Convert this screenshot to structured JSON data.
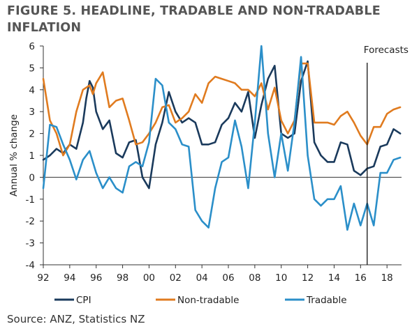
{
  "title": "FIGURE 5. HEADLINE, TRADABLE AND NON-TRADABLE INFLATION",
  "source": "Source: ANZ, Statistics NZ",
  "chart_data": {
    "type": "line",
    "ylabel": "Annual % change",
    "xlabel": "",
    "ylim": [
      -4,
      6
    ],
    "yticks": [
      -4,
      -3,
      -2,
      -1,
      0,
      1,
      2,
      3,
      4,
      5,
      6
    ],
    "xlim": [
      1992,
      2019.1
    ],
    "xticks": [
      1992,
      1994,
      1996,
      1998,
      2000,
      2002,
      2004,
      2006,
      2008,
      2010,
      2012,
      2014,
      2016,
      2018
    ],
    "xtick_labels": [
      "92",
      "94",
      "96",
      "98",
      "00",
      "02",
      "04",
      "06",
      "08",
      "10",
      "12",
      "14",
      "16",
      "18"
    ],
    "annotation": {
      "text": "Forecasts",
      "x": 2016.5
    },
    "legend_position": "bottom",
    "series": [
      {
        "name": "CPI",
        "color": "#1a3a5c",
        "points": [
          [
            1992.0,
            0.8
          ],
          [
            1992.5,
            1.0
          ],
          [
            1993.0,
            1.3
          ],
          [
            1993.5,
            1.1
          ],
          [
            1994.0,
            1.5
          ],
          [
            1994.5,
            1.3
          ],
          [
            1995.0,
            2.5
          ],
          [
            1995.25,
            3.6
          ],
          [
            1995.5,
            4.4
          ],
          [
            1995.75,
            4.1
          ],
          [
            1996.0,
            3.0
          ],
          [
            1996.5,
            2.2
          ],
          [
            1997.0,
            2.6
          ],
          [
            1997.5,
            1.1
          ],
          [
            1998.0,
            0.9
          ],
          [
            1998.5,
            1.6
          ],
          [
            1999.0,
            1.7
          ],
          [
            1999.5,
            0.0
          ],
          [
            2000.0,
            -0.5
          ],
          [
            2000.5,
            1.5
          ],
          [
            2001.0,
            2.5
          ],
          [
            2001.5,
            3.9
          ],
          [
            2002.0,
            3.0
          ],
          [
            2002.5,
            2.5
          ],
          [
            2003.0,
            2.7
          ],
          [
            2003.5,
            2.5
          ],
          [
            2004.0,
            1.5
          ],
          [
            2004.5,
            1.5
          ],
          [
            2005.0,
            1.6
          ],
          [
            2005.5,
            2.4
          ],
          [
            2006.0,
            2.7
          ],
          [
            2006.5,
            3.4
          ],
          [
            2007.0,
            3.0
          ],
          [
            2007.5,
            3.9
          ],
          [
            2008.0,
            1.8
          ],
          [
            2008.5,
            3.3
          ],
          [
            2009.0,
            4.5
          ],
          [
            2009.5,
            5.1
          ],
          [
            2010.0,
            2.0
          ],
          [
            2010.5,
            1.8
          ],
          [
            2011.0,
            2.0
          ],
          [
            2011.5,
            4.4
          ],
          [
            2012.0,
            5.3
          ],
          [
            2012.5,
            1.6
          ],
          [
            2013.0,
            1.0
          ],
          [
            2013.5,
            0.7
          ],
          [
            2014.0,
            0.7
          ],
          [
            2014.5,
            1.6
          ],
          [
            2015.0,
            1.5
          ],
          [
            2015.5,
            0.3
          ],
          [
            2016.0,
            0.1
          ],
          [
            2016.5,
            0.4
          ],
          [
            2017.0,
            0.5
          ],
          [
            2017.5,
            1.4
          ],
          [
            2018.0,
            1.5
          ],
          [
            2018.5,
            2.2
          ],
          [
            2019.0,
            2.0
          ]
        ]
      },
      {
        "name": "Non-tradable",
        "color": "#e07b1f",
        "points": [
          [
            1992.0,
            4.5
          ],
          [
            1992.5,
            2.6
          ],
          [
            1993.0,
            2.0
          ],
          [
            1993.5,
            1.0
          ],
          [
            1994.0,
            1.5
          ],
          [
            1994.5,
            3.0
          ],
          [
            1995.0,
            4.0
          ],
          [
            1995.5,
            4.2
          ],
          [
            1995.75,
            3.8
          ],
          [
            1996.0,
            4.3
          ],
          [
            1996.5,
            4.8
          ],
          [
            1997.0,
            3.2
          ],
          [
            1997.5,
            3.5
          ],
          [
            1998.0,
            3.6
          ],
          [
            1998.5,
            2.6
          ],
          [
            1999.0,
            1.5
          ],
          [
            1999.5,
            1.6
          ],
          [
            2000.0,
            2.0
          ],
          [
            2000.5,
            2.5
          ],
          [
            2001.0,
            3.2
          ],
          [
            2001.5,
            3.3
          ],
          [
            2002.0,
            2.5
          ],
          [
            2002.5,
            2.7
          ],
          [
            2003.0,
            3.0
          ],
          [
            2003.5,
            3.8
          ],
          [
            2004.0,
            3.4
          ],
          [
            2004.5,
            4.3
          ],
          [
            2005.0,
            4.6
          ],
          [
            2005.5,
            4.5
          ],
          [
            2006.0,
            4.4
          ],
          [
            2006.5,
            4.3
          ],
          [
            2007.0,
            4.0
          ],
          [
            2007.5,
            4.0
          ],
          [
            2008.0,
            3.7
          ],
          [
            2008.5,
            4.3
          ],
          [
            2009.0,
            3.1
          ],
          [
            2009.5,
            4.1
          ],
          [
            2010.0,
            2.6
          ],
          [
            2010.5,
            2.0
          ],
          [
            2011.0,
            2.6
          ],
          [
            2011.5,
            5.2
          ],
          [
            2012.0,
            5.2
          ],
          [
            2012.5,
            2.5
          ],
          [
            2013.0,
            2.5
          ],
          [
            2013.5,
            2.5
          ],
          [
            2014.0,
            2.4
          ],
          [
            2014.5,
            2.8
          ],
          [
            2015.0,
            3.0
          ],
          [
            2015.5,
            2.5
          ],
          [
            2016.0,
            1.9
          ],
          [
            2016.5,
            1.5
          ],
          [
            2017.0,
            2.3
          ],
          [
            2017.5,
            2.3
          ],
          [
            2018.0,
            2.9
          ],
          [
            2018.5,
            3.1
          ],
          [
            2019.0,
            3.2
          ]
        ]
      },
      {
        "name": "Tradable",
        "color": "#2b8fc9",
        "points": [
          [
            1992.0,
            -0.5
          ],
          [
            1992.5,
            2.4
          ],
          [
            1993.0,
            2.3
          ],
          [
            1993.5,
            1.5
          ],
          [
            1994.0,
            0.8
          ],
          [
            1994.5,
            -0.1
          ],
          [
            1995.0,
            0.8
          ],
          [
            1995.5,
            1.2
          ],
          [
            1996.0,
            0.2
          ],
          [
            1996.5,
            -0.5
          ],
          [
            1997.0,
            0.0
          ],
          [
            1997.5,
            -0.5
          ],
          [
            1998.0,
            -0.7
          ],
          [
            1998.5,
            0.5
          ],
          [
            1999.0,
            0.7
          ],
          [
            1999.5,
            0.5
          ],
          [
            2000.0,
            1.6
          ],
          [
            2000.5,
            4.5
          ],
          [
            2001.0,
            4.2
          ],
          [
            2001.5,
            2.5
          ],
          [
            2002.0,
            2.2
          ],
          [
            2002.5,
            1.5
          ],
          [
            2003.0,
            1.4
          ],
          [
            2003.5,
            -1.5
          ],
          [
            2004.0,
            -2.0
          ],
          [
            2004.5,
            -2.3
          ],
          [
            2005.0,
            -0.5
          ],
          [
            2005.5,
            0.7
          ],
          [
            2006.0,
            0.9
          ],
          [
            2006.5,
            2.6
          ],
          [
            2007.0,
            1.4
          ],
          [
            2007.5,
            -0.5
          ],
          [
            2008.0,
            2.5
          ],
          [
            2008.5,
            6.0
          ],
          [
            2009.0,
            2.0
          ],
          [
            2009.5,
            0.0
          ],
          [
            2010.0,
            2.0
          ],
          [
            2010.5,
            0.3
          ],
          [
            2011.0,
            2.5
          ],
          [
            2011.5,
            5.5
          ],
          [
            2012.0,
            1.0
          ],
          [
            2012.5,
            -1.0
          ],
          [
            2013.0,
            -1.3
          ],
          [
            2013.5,
            -1.0
          ],
          [
            2014.0,
            -1.0
          ],
          [
            2014.5,
            -0.4
          ],
          [
            2015.0,
            -2.4
          ],
          [
            2015.5,
            -1.2
          ],
          [
            2016.0,
            -2.2
          ],
          [
            2016.5,
            -1.2
          ],
          [
            2017.0,
            -2.2
          ],
          [
            2017.5,
            0.2
          ],
          [
            2018.0,
            0.2
          ],
          [
            2018.5,
            0.8
          ],
          [
            2019.0,
            0.9
          ]
        ]
      }
    ]
  }
}
